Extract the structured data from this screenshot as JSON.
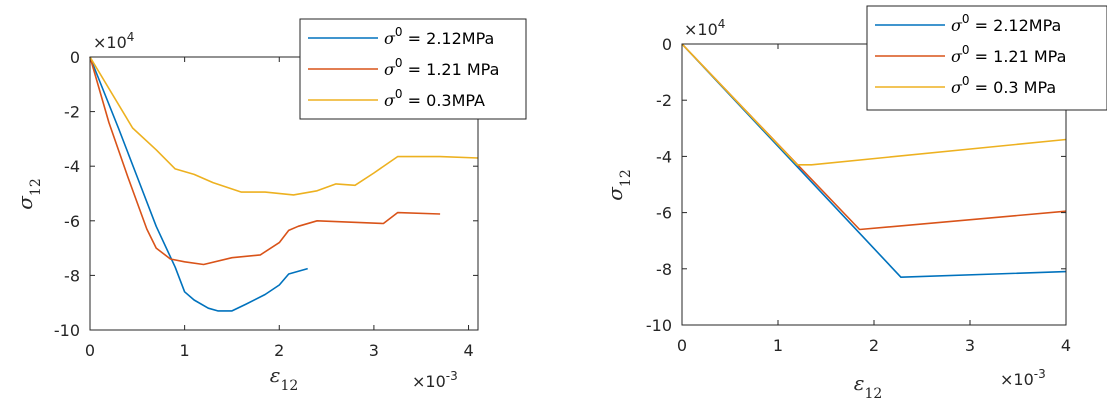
{
  "chart_data": [
    {
      "type": "line",
      "xlabel": "ε",
      "xlabel_sub": "12",
      "ylabel": "σ",
      "ylabel_sub": "12",
      "x_exponent": "×10",
      "x_exponent_power": "-3",
      "y_exponent": "×10",
      "y_exponent_power": "4",
      "xlim": [
        0,
        4.1
      ],
      "ylim": [
        -10,
        0
      ],
      "xticks": [
        0,
        1,
        2,
        3,
        4
      ],
      "xtick_labels": [
        "0",
        "1",
        "2",
        "3",
        "4"
      ],
      "yticks": [
        0,
        -2,
        -4,
        -6,
        -8,
        -10
      ],
      "ytick_labels": [
        "0",
        "-2",
        "-4",
        "-6",
        "-8",
        "-10"
      ],
      "grid": false,
      "legend_position": "top-right",
      "series": [
        {
          "label": "σ",
          "label_power": "0",
          "label_value": " = 2.12MPa",
          "color": "#0072BD",
          "x": [
            0,
            0.3,
            0.5,
            0.7,
            0.9,
            1.0,
            1.1,
            1.25,
            1.35,
            1.5,
            1.65,
            1.85,
            2.0,
            2.1,
            2.3
          ],
          "y": [
            0,
            -2.6,
            -4.4,
            -6.2,
            -7.7,
            -8.6,
            -8.9,
            -9.2,
            -9.3,
            -9.3,
            -9.05,
            -8.7,
            -8.35,
            -7.95,
            -7.75
          ]
        },
        {
          "label": "σ",
          "label_power": "0",
          "label_value": " = 1.21 MPa",
          "color": "#D95319",
          "x": [
            0,
            0.2,
            0.4,
            0.6,
            0.7,
            0.85,
            1.0,
            1.2,
            1.5,
            1.8,
            2.0,
            2.1,
            2.2,
            2.4,
            3.1,
            3.25,
            3.7
          ],
          "y": [
            0,
            -2.4,
            -4.4,
            -6.3,
            -7.0,
            -7.4,
            -7.5,
            -7.6,
            -7.35,
            -7.25,
            -6.8,
            -6.35,
            -6.2,
            -6.0,
            -6.1,
            -5.7,
            -5.75
          ]
        },
        {
          "label": "σ",
          "label_power": "0",
          "label_value": " = 0.3MPA",
          "color": "#EDB120",
          "x": [
            0,
            0.45,
            0.7,
            0.9,
            1.1,
            1.3,
            1.6,
            1.85,
            2.15,
            2.4,
            2.6,
            2.8,
            3.0,
            3.25,
            3.7,
            4.1
          ],
          "y": [
            0,
            -2.6,
            -3.4,
            -4.1,
            -4.3,
            -4.6,
            -4.95,
            -4.95,
            -5.05,
            -4.9,
            -4.65,
            -4.7,
            -4.25,
            -3.65,
            -3.65,
            -3.7
          ]
        }
      ]
    },
    {
      "type": "line",
      "xlabel": "ε",
      "xlabel_sub": "12",
      "ylabel": "σ",
      "ylabel_sub": "12",
      "x_exponent": "×10",
      "x_exponent_power": "-3",
      "y_exponent": "×10",
      "y_exponent_power": "4",
      "xlim": [
        0,
        4
      ],
      "ylim": [
        -10,
        0
      ],
      "xticks": [
        0,
        1,
        2,
        3,
        4
      ],
      "xtick_labels": [
        "0",
        "1",
        "2",
        "3",
        "4"
      ],
      "yticks": [
        0,
        -2,
        -4,
        -6,
        -8,
        -10
      ],
      "ytick_labels": [
        "0",
        "-2",
        "-4",
        "-6",
        "-8",
        "-10"
      ],
      "grid": false,
      "legend_position": "top-right",
      "series": [
        {
          "label": "σ",
          "label_power": "0",
          "label_value": " = 2.12MPa",
          "color": "#0072BD",
          "x": [
            0,
            2.28,
            4.0
          ],
          "y": [
            0,
            -8.3,
            -8.1
          ]
        },
        {
          "label": "σ",
          "label_power": "0",
          "label_value": " = 1.21 MPa",
          "color": "#D95319",
          "x": [
            0,
            1.85,
            4.0
          ],
          "y": [
            0,
            -6.6,
            -5.95
          ]
        },
        {
          "label": "σ",
          "label_power": "0",
          "label_value": " = 0.3 MPa",
          "color": "#EDB120",
          "x": [
            0,
            1.2,
            1.35,
            4.0
          ],
          "y": [
            0,
            -4.3,
            -4.3,
            -3.4
          ]
        }
      ]
    }
  ]
}
